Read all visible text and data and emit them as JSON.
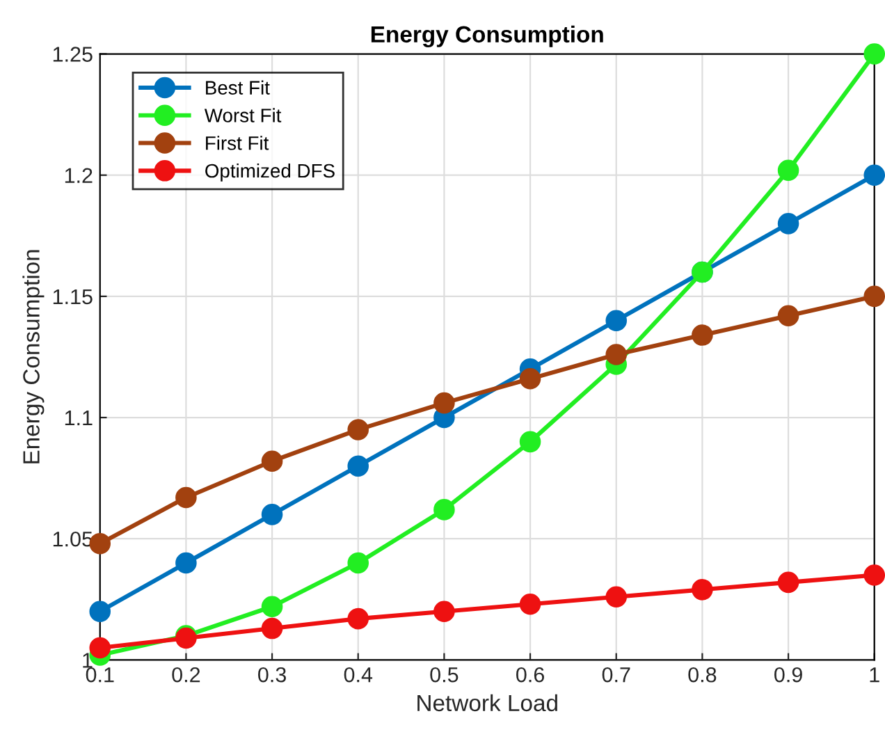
{
  "chart_data": {
    "type": "line",
    "title": "Energy Consumption",
    "xlabel": "Network Load",
    "ylabel": "Energy Consumption",
    "x": [
      0.1,
      0.2,
      0.3,
      0.4,
      0.5,
      0.6,
      0.7,
      0.8,
      0.9,
      1
    ],
    "series": [
      {
        "name": "Best Fit",
        "color": "#0072bd",
        "values": [
          1.02,
          1.04,
          1.06,
          1.08,
          1.1,
          1.12,
          1.14,
          1.16,
          1.18,
          1.2
        ]
      },
      {
        "name": "Worst Fit",
        "color": "#22ee22",
        "values": [
          1.002,
          1.01,
          1.022,
          1.04,
          1.062,
          1.09,
          1.122,
          1.16,
          1.202,
          1.25
        ]
      },
      {
        "name": "First Fit",
        "color": "#a2410f",
        "values": [
          1.048,
          1.067,
          1.082,
          1.095,
          1.106,
          1.116,
          1.126,
          1.134,
          1.142,
          1.15
        ]
      },
      {
        "name": "Optimized DFS",
        "color": "#ee1111",
        "values": [
          1.005,
          1.009,
          1.013,
          1.017,
          1.02,
          1.023,
          1.026,
          1.029,
          1.032,
          1.035
        ]
      }
    ],
    "xlim": [
      0.1,
      1
    ],
    "ylim": [
      1,
      1.25
    ],
    "xticks": [
      0.1,
      0.2,
      0.3,
      0.4,
      0.5,
      0.6,
      0.7,
      0.8,
      0.9,
      1
    ],
    "yticks": [
      1,
      1.05,
      1.1,
      1.15,
      1.2,
      1.25
    ],
    "grid": true,
    "legend": "top left",
    "marker": "circle",
    "line_style": "solid"
  }
}
